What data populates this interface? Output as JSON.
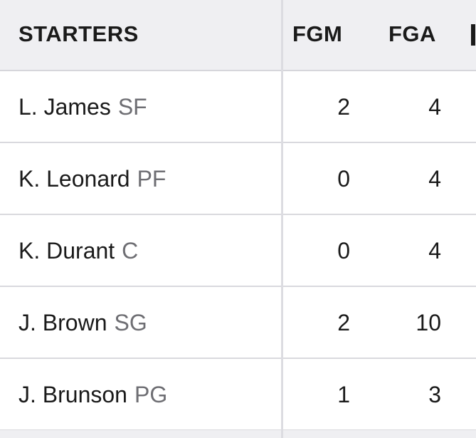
{
  "header": {
    "starters": "STARTERS",
    "fgm": "FGM",
    "fga": "FGA"
  },
  "players": [
    {
      "name": "L. James",
      "pos": "SF",
      "fgm": "2",
      "fga": "4"
    },
    {
      "name": "K. Leonard",
      "pos": "PF",
      "fgm": "0",
      "fga": "4"
    },
    {
      "name": "K. Durant",
      "pos": "C",
      "fgm": "0",
      "fga": "4"
    },
    {
      "name": "J. Brown",
      "pos": "SG",
      "fgm": "2",
      "fga": "10"
    },
    {
      "name": "J. Brunson",
      "pos": "PG",
      "fgm": "1",
      "fga": "3"
    }
  ]
}
